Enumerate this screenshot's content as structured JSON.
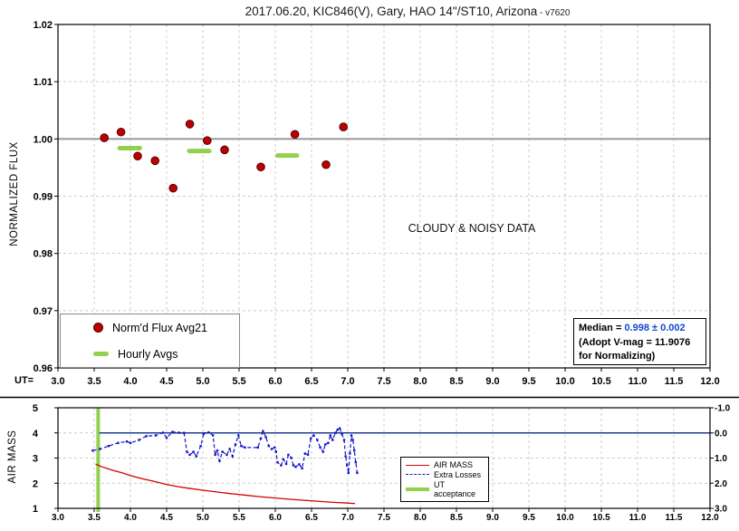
{
  "title": {
    "main": "2017.06.20, KIC846(V), Gary, HAO 14\"/ST10, Arizona",
    "suffix": " - v7620"
  },
  "top_chart": {
    "ylabel": "NORMALIZED FLUX",
    "x_prefix_label": "UT=",
    "x_ticks": [
      "3.0",
      "3.5",
      "4.0",
      "4.5",
      "5.0",
      "5.5",
      "6.0",
      "6.5",
      "7.0",
      "7.5",
      "8.0",
      "8.5",
      "9.0",
      "9.5",
      "10.0",
      "10.5",
      "11.0",
      "11.5",
      "12.0"
    ],
    "y_ticks": [
      "1.02",
      "1.01",
      "1.00",
      "0.99",
      "0.98",
      "0.97",
      "0.96"
    ],
    "annotation": "CLOUDY & NOISY DATA",
    "legend": {
      "item1": "Norm'd Flux Avg21",
      "item2": "Hourly Avgs"
    },
    "median_box": {
      "label": "Median = ",
      "value": "0.998 ± 0.002",
      "line2": "(Adopt V-mag = 11.9076",
      "line3": " for Normalizing)"
    }
  },
  "bottom_chart": {
    "ylabel": "AIR MASS",
    "x_ticks": [
      "3.0",
      "3.5",
      "4.0",
      "4.5",
      "5.0",
      "5.5",
      "6.0",
      "6.5",
      "7.0",
      "7.5",
      "8.0",
      "8.5",
      "9.0",
      "9.5",
      "10.0",
      "10.5",
      "11.0",
      "11.5",
      "12.0"
    ],
    "y_ticks_left": [
      "5",
      "4",
      "3",
      "2",
      "1"
    ],
    "y_ticks_right": [
      "-1.0",
      "0.0",
      "1.0",
      "2.0",
      "3.0"
    ],
    "legend": {
      "item1": "AIR MASS",
      "item2": "Extra Losses",
      "item3": "UT acceptance"
    }
  },
  "colors": {
    "flux_point": "#c00000",
    "flux_point_edge": "#4d0000",
    "hourly_avg": "#92d050",
    "reference_line": "#9e9e9e",
    "gridline": "#cccccc",
    "axis": "#000000",
    "airmass_line": "#d40000",
    "extra_losses_line": "#1414c8",
    "ut_acceptance_line": "#92d050",
    "zero_line": "#1f3f8f",
    "median_value": "#1648d2"
  },
  "chart_data": [
    {
      "type": "scatter",
      "title": "2017.06.20, KIC846(V), Gary, HAO 14\"/ST10, Arizona - v7620",
      "xlabel": "UT",
      "ylabel": "NORMALIZED FLUX",
      "xlim": [
        3.0,
        12.0
      ],
      "x_tick_step": 0.5,
      "ylim": [
        0.96,
        1.02
      ],
      "y_tick_step": 0.01,
      "grid": true,
      "reference_line_y": 1.0,
      "annotation": "CLOUDY & NOISY DATA",
      "legend_position": "bottom-left-inside",
      "median_note": "Median = 0.998 ± 0.002 (Adopt V-mag = 11.9076 for Normalizing)",
      "series": [
        {
          "name": "Norm'd Flux Avg21",
          "render": "points",
          "points": [
            [
              3.64,
              1.0002
            ],
            [
              3.87,
              1.0012
            ],
            [
              4.1,
              0.997
            ],
            [
              4.34,
              0.9962
            ],
            [
              4.59,
              0.9914
            ],
            [
              4.82,
              1.0026
            ],
            [
              5.06,
              0.9997
            ],
            [
              5.3,
              0.9981
            ],
            [
              5.8,
              0.9951
            ],
            [
              6.27,
              1.0008
            ],
            [
              6.7,
              0.9955
            ],
            [
              6.94,
              1.0021
            ]
          ]
        },
        {
          "name": "Hourly Avgs",
          "render": "segments",
          "segments": [
            {
              "x1": 3.82,
              "x2": 4.16,
              "y": 0.9984
            },
            {
              "x1": 4.78,
              "x2": 5.12,
              "y": 0.9979
            },
            {
              "x1": 6.0,
              "x2": 6.33,
              "y": 0.9971
            }
          ]
        }
      ]
    },
    {
      "type": "line",
      "xlabel": "UT",
      "ylabel_left": "AIR MASS",
      "xlim": [
        3.0,
        12.0
      ],
      "x_tick_step": 0.5,
      "ylim_left": [
        1,
        5
      ],
      "ylim_right": [
        -1.0,
        3.0
      ],
      "right_axis_increases_downward": true,
      "grid": true,
      "series": [
        {
          "name": "AIR MASS",
          "axis": "left",
          "render": "line",
          "points": [
            [
              3.52,
              2.76
            ],
            [
              3.6,
              2.66
            ],
            [
              3.75,
              2.52
            ],
            [
              3.9,
              2.4
            ],
            [
              4.0,
              2.3
            ],
            [
              4.15,
              2.19
            ],
            [
              4.3,
              2.09
            ],
            [
              4.5,
              1.95
            ],
            [
              4.66,
              1.86
            ],
            [
              4.8,
              1.8
            ],
            [
              5.0,
              1.72
            ],
            [
              5.2,
              1.65
            ],
            [
              5.4,
              1.58
            ],
            [
              5.6,
              1.52
            ],
            [
              5.8,
              1.46
            ],
            [
              6.0,
              1.41
            ],
            [
              6.2,
              1.36
            ],
            [
              6.4,
              1.32
            ],
            [
              6.6,
              1.28
            ],
            [
              6.8,
              1.24
            ],
            [
              7.0,
              1.21
            ],
            [
              7.1,
              1.19
            ]
          ]
        },
        {
          "name": "Extra Losses",
          "axis": "right",
          "render": "dashed-line-markers",
          "points": [
            [
              3.48,
              0.7
            ],
            [
              3.58,
              0.64
            ],
            [
              3.7,
              0.52
            ],
            [
              3.83,
              0.4
            ],
            [
              3.95,
              0.34
            ],
            [
              4.0,
              0.4
            ],
            [
              4.12,
              0.28
            ],
            [
              4.22,
              0.13
            ],
            [
              4.35,
              0.1
            ],
            [
              4.45,
              -0.01
            ],
            [
              4.5,
              0.2
            ],
            [
              4.58,
              -0.04
            ],
            [
              4.67,
              -0.01
            ],
            [
              4.74,
              0.0
            ],
            [
              4.78,
              0.75
            ],
            [
              4.82,
              0.87
            ],
            [
              4.87,
              0.75
            ],
            [
              4.91,
              0.93
            ],
            [
              4.97,
              0.52
            ],
            [
              5.01,
              0.04
            ],
            [
              5.08,
              -0.02
            ],
            [
              5.14,
              0.1
            ],
            [
              5.17,
              0.87
            ],
            [
              5.2,
              0.7
            ],
            [
              5.23,
              1.11
            ],
            [
              5.27,
              0.75
            ],
            [
              5.33,
              0.87
            ],
            [
              5.37,
              0.64
            ],
            [
              5.41,
              0.93
            ],
            [
              5.45,
              0.46
            ],
            [
              5.49,
              0.1
            ],
            [
              5.53,
              0.52
            ],
            [
              5.58,
              0.58
            ],
            [
              5.76,
              0.58
            ],
            [
              5.8,
              0.22
            ],
            [
              5.83,
              -0.07
            ],
            [
              5.87,
              0.17
            ],
            [
              5.91,
              0.52
            ],
            [
              5.95,
              0.64
            ],
            [
              5.99,
              0.58
            ],
            [
              6.01,
              0.75
            ],
            [
              6.03,
              1.17
            ],
            [
              6.08,
              1.29
            ],
            [
              6.11,
              1.05
            ],
            [
              6.15,
              1.23
            ],
            [
              6.18,
              0.87
            ],
            [
              6.22,
              0.99
            ],
            [
              6.25,
              1.29
            ],
            [
              6.28,
              1.35
            ],
            [
              6.33,
              1.25
            ],
            [
              6.37,
              1.41
            ],
            [
              6.41,
              0.82
            ],
            [
              6.45,
              0.87
            ],
            [
              6.49,
              0.22
            ],
            [
              6.53,
              0.1
            ],
            [
              6.58,
              0.28
            ],
            [
              6.62,
              0.58
            ],
            [
              6.66,
              0.75
            ],
            [
              6.69,
              0.46
            ],
            [
              6.73,
              0.4
            ],
            [
              6.76,
              0.1
            ],
            [
              6.79,
              0.28
            ],
            [
              6.83,
              0.0
            ],
            [
              6.86,
              -0.13
            ],
            [
              6.89,
              -0.18
            ],
            [
              6.92,
              0.05
            ],
            [
              6.95,
              0.28
            ],
            [
              6.97,
              0.93
            ],
            [
              6.99,
              1.29
            ],
            [
              7.01,
              1.59
            ],
            [
              7.03,
              0.82
            ],
            [
              7.05,
              0.1
            ],
            [
              7.07,
              0.28
            ],
            [
              7.09,
              0.7
            ],
            [
              7.11,
              1.17
            ],
            [
              7.13,
              1.59
            ]
          ]
        },
        {
          "name": "UT acceptance",
          "render": "vline",
          "x": 3.555
        },
        {
          "name": "zero reference",
          "render": "hline",
          "axis": "right",
          "y": 0.0,
          "x_start": 3.57,
          "x_end": 12.0
        }
      ]
    }
  ]
}
